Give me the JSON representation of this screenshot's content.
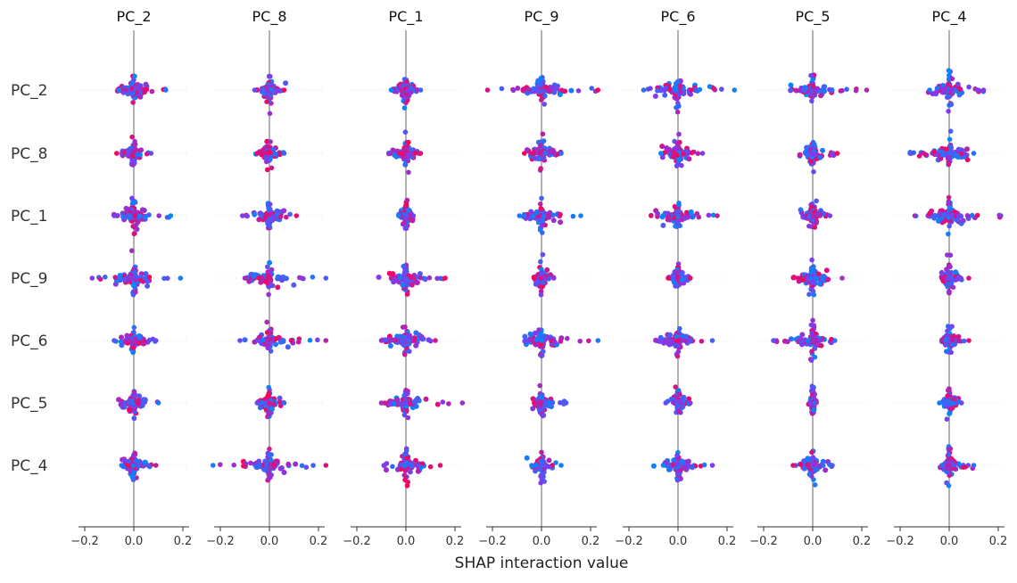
{
  "chart_data": {
    "type": "scatter",
    "subtype": "shap-interaction-beeswarm-matrix",
    "xlabel": "SHAP interaction value",
    "columns": [
      "PC_2",
      "PC_8",
      "PC_1",
      "PC_9",
      "PC_6",
      "PC_5",
      "PC_4"
    ],
    "rows": [
      "PC_2",
      "PC_8",
      "PC_1",
      "PC_9",
      "PC_6",
      "PC_5",
      "PC_4"
    ],
    "xlim": [
      -0.22,
      0.22
    ],
    "xticks": [
      -0.2,
      0.0,
      0.2
    ],
    "xtick_labels": [
      "−0.2",
      "0.0",
      "0.2"
    ],
    "color_low": "#008afb",
    "color_mid": "#7e3cf0",
    "color_high": "#ff0052",
    "panels": [
      {
        "col": "PC_2",
        "cells": [
          [
            -0.06,
            0.13
          ],
          [
            -0.07,
            0.07
          ],
          [
            -0.08,
            0.15
          ],
          [
            -0.17,
            0.19
          ],
          [
            -0.08,
            0.09
          ],
          [
            -0.05,
            0.1
          ],
          [
            -0.05,
            0.09
          ]
        ]
      },
      {
        "col": "PC_8",
        "cells": [
          [
            -0.06,
            0.06
          ],
          [
            -0.05,
            0.06
          ],
          [
            -0.11,
            0.11
          ],
          [
            -0.1,
            0.23
          ],
          [
            -0.12,
            0.23
          ],
          [
            -0.05,
            0.06
          ],
          [
            -0.23,
            0.23
          ]
        ]
      },
      {
        "col": "PC_1",
        "cells": [
          [
            -0.06,
            0.06
          ],
          [
            -0.07,
            0.06
          ],
          [
            -0.03,
            0.03
          ],
          [
            -0.06,
            0.16
          ],
          [
            -0.1,
            0.12
          ],
          [
            -0.1,
            0.23
          ],
          [
            -0.09,
            0.14
          ]
        ]
      },
      {
        "col": "PC_9",
        "cells": [
          [
            -0.22,
            0.23
          ],
          [
            -0.07,
            0.08
          ],
          [
            -0.09,
            0.16
          ],
          [
            -0.03,
            0.05
          ],
          [
            -0.06,
            0.23
          ],
          [
            -0.03,
            0.1
          ],
          [
            -0.04,
            0.08
          ]
        ]
      },
      {
        "col": "PC_6",
        "cells": [
          [
            -0.14,
            0.23
          ],
          [
            -0.07,
            0.1
          ],
          [
            -0.11,
            0.16
          ],
          [
            -0.04,
            0.05
          ],
          [
            -0.09,
            0.14
          ],
          [
            -0.05,
            0.05
          ],
          [
            -0.06,
            0.14
          ]
        ]
      },
      {
        "col": "PC_5",
        "cells": [
          [
            -0.09,
            0.22
          ],
          [
            -0.03,
            0.1
          ],
          [
            -0.04,
            0.07
          ],
          [
            -0.06,
            0.12
          ],
          [
            -0.16,
            0.09
          ],
          [
            -0.01,
            0.01
          ],
          [
            -0.08,
            0.08
          ]
        ]
      },
      {
        "col": "PC_4",
        "cells": [
          [
            -0.08,
            0.14
          ],
          [
            -0.16,
            0.1
          ],
          [
            -0.14,
            0.21
          ],
          [
            -0.03,
            0.08
          ],
          [
            -0.03,
            0.08
          ],
          [
            -0.04,
            0.05
          ],
          [
            -0.03,
            0.1
          ]
        ]
      }
    ]
  }
}
